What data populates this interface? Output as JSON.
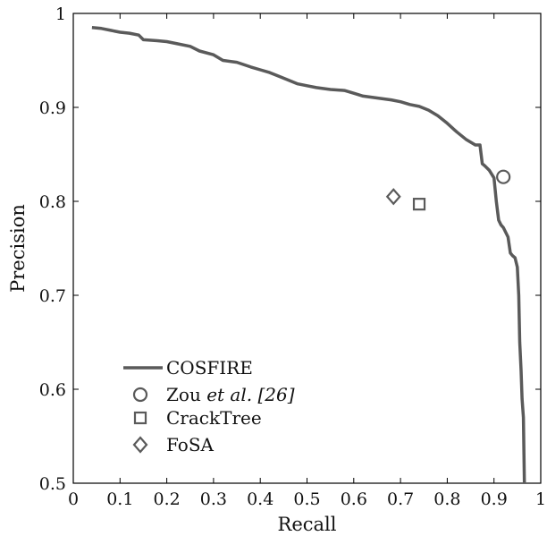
{
  "chart_data": {
    "type": "line",
    "xlabel": "Recall",
    "ylabel": "Precision",
    "xlim": [
      0,
      1
    ],
    "ylim": [
      0.5,
      1
    ],
    "x_ticks": [
      0,
      0.1,
      0.2,
      0.3,
      0.4,
      0.5,
      0.6,
      0.7,
      0.8,
      0.9,
      1
    ],
    "x_tick_labels": [
      "0",
      "0.1",
      "0.2",
      "0.3",
      "0.4",
      "0.5",
      "0.6",
      "0.7",
      "0.8",
      "0.9",
      "1"
    ],
    "y_ticks": [
      0.5,
      0.6,
      0.7,
      0.8,
      0.9,
      1
    ],
    "y_tick_labels": [
      "0.5",
      "0.6",
      "0.7",
      "0.8",
      "0.9",
      "1"
    ],
    "grid": false,
    "legend_position": "bottom-left",
    "colors": {
      "series": "#5a5a5a",
      "axes": "#000000"
    },
    "series": [
      {
        "name": "COSFIRE",
        "kind": "line",
        "x": [
          0.04,
          0.06,
          0.08,
          0.1,
          0.12,
          0.14,
          0.15,
          0.18,
          0.2,
          0.22,
          0.25,
          0.27,
          0.3,
          0.32,
          0.35,
          0.38,
          0.4,
          0.42,
          0.44,
          0.46,
          0.48,
          0.5,
          0.52,
          0.55,
          0.58,
          0.6,
          0.62,
          0.65,
          0.68,
          0.7,
          0.72,
          0.74,
          0.76,
          0.78,
          0.8,
          0.82,
          0.84,
          0.86,
          0.87,
          0.875,
          0.88,
          0.89,
          0.9,
          0.905,
          0.91,
          0.915,
          0.92,
          0.93,
          0.935,
          0.94,
          0.945,
          0.95,
          0.953,
          0.955,
          0.958,
          0.96,
          0.963,
          0.965
        ],
        "y": [
          0.985,
          0.984,
          0.982,
          0.98,
          0.979,
          0.977,
          0.972,
          0.971,
          0.97,
          0.968,
          0.965,
          0.96,
          0.956,
          0.95,
          0.948,
          0.943,
          0.94,
          0.937,
          0.933,
          0.929,
          0.925,
          0.923,
          0.921,
          0.919,
          0.918,
          0.915,
          0.912,
          0.91,
          0.908,
          0.906,
          0.903,
          0.901,
          0.897,
          0.891,
          0.883,
          0.874,
          0.866,
          0.86,
          0.86,
          0.84,
          0.838,
          0.833,
          0.825,
          0.8,
          0.78,
          0.775,
          0.772,
          0.762,
          0.745,
          0.742,
          0.74,
          0.73,
          0.7,
          0.65,
          0.62,
          0.59,
          0.57,
          0.5
        ]
      },
      {
        "name": "Zou et al. [26]",
        "kind": "marker",
        "marker": "circle",
        "x": [
          0.92
        ],
        "y": [
          0.826
        ]
      },
      {
        "name": "CrackTree",
        "kind": "marker",
        "marker": "square",
        "x": [
          0.74
        ],
        "y": [
          0.797
        ]
      },
      {
        "name": "FoSA",
        "kind": "marker",
        "marker": "diamond",
        "x": [
          0.685
        ],
        "y": [
          0.805
        ]
      }
    ]
  },
  "legend": {
    "items": [
      {
        "key": "cosfire",
        "label": "COSFIRE"
      },
      {
        "key": "zou",
        "label_main": "Zou ",
        "label_italic": "et al. [26]"
      },
      {
        "key": "cracktree",
        "label": "CrackTree"
      },
      {
        "key": "fosa",
        "label": "FoSA"
      }
    ]
  }
}
